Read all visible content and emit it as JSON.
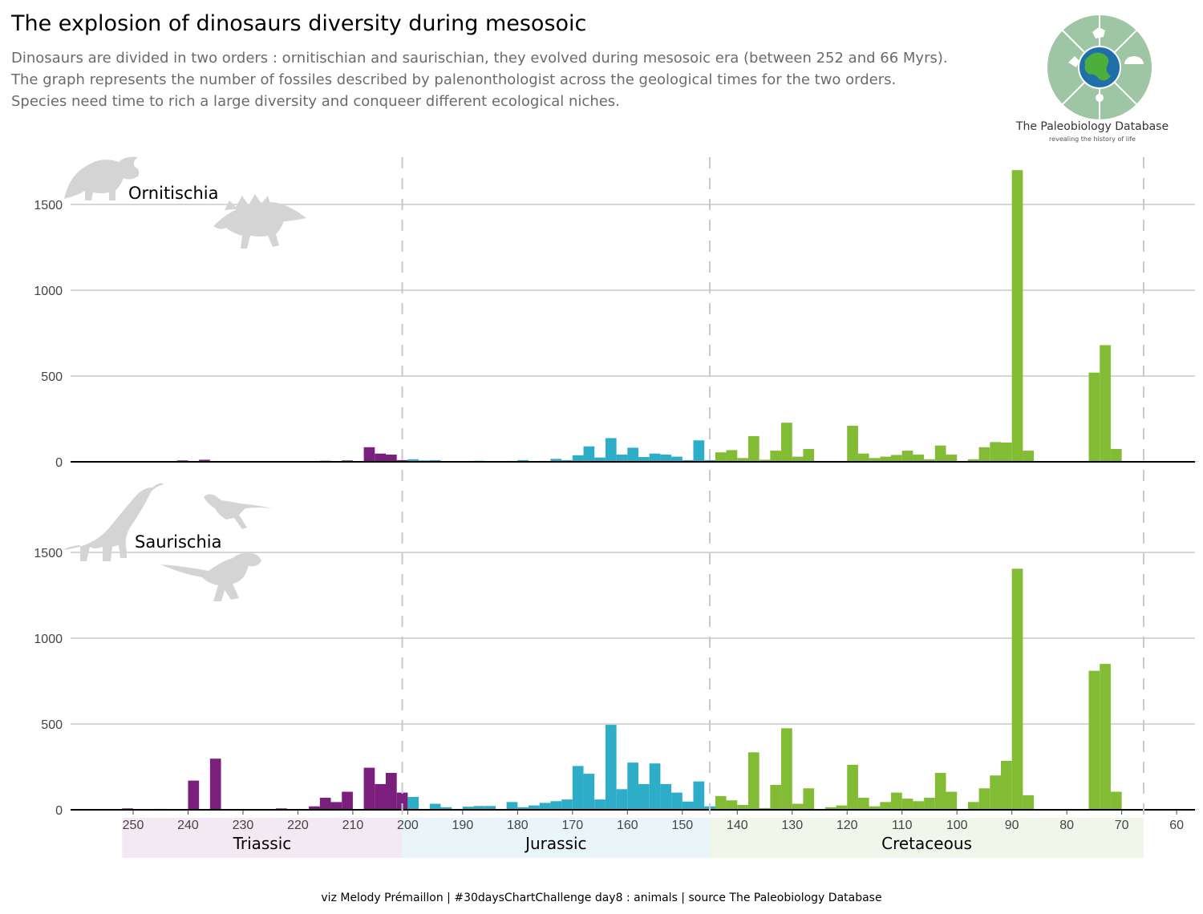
{
  "title": "The explosion of dinosaurs diversity during mesosoic",
  "subtitle": [
    "Dinosaurs are divided in two orders : ornitischian and saurischian, they evolved during mesosoic era (between 252 and 66 Myrs).",
    "The graph represents the number of fossiles described by palenonthologist across the geological times for the two orders.",
    "Species need time to rich a large diversity and conqueer different ecological niches."
  ],
  "logo": {
    "name": "The Paleobiology Database",
    "tagline": "revealing the history of life",
    "icon": "paleobiology-database-logo"
  },
  "caption": "viz Melody Prémaillon | #30daysChartChallenge day8 : animals | source The Paleobiology Database",
  "chart_data": {
    "type": "bar",
    "x_axis": {
      "label": "",
      "reversed": true,
      "range": [
        262,
        57
      ],
      "ticks": [
        250,
        240,
        230,
        220,
        210,
        200,
        190,
        180,
        170,
        160,
        150,
        140,
        130,
        120,
        110,
        100,
        90,
        80,
        70,
        60
      ]
    },
    "y_axis": {
      "label": "",
      "range": [
        0,
        1800
      ],
      "ticks": [
        0,
        500,
        1000,
        1500
      ]
    },
    "bin_width": 2,
    "grid": true,
    "boundaries": [
      201,
      145,
      66
    ],
    "periods": [
      {
        "name": "Triassic",
        "start": 252,
        "end": 201,
        "color": "#7b1f7d",
        "band_color": "#f3e9f2"
      },
      {
        "name": "Jurassic",
        "start": 201,
        "end": 145,
        "color": "#2eadc9",
        "band_color": "#eaf5fa"
      },
      {
        "name": "Cretaceous",
        "start": 145,
        "end": 66,
        "color": "#82bc35",
        "band_color": "#f0f6ea"
      }
    ],
    "facets": [
      {
        "name": "Ornitischia",
        "silhouettes": [
          "triceratops-silhouette",
          "stegosaurus-silhouette"
        ],
        "bars": [
          [
            252,
            2
          ],
          [
            250,
            2
          ],
          [
            248,
            2
          ],
          [
            246,
            2
          ],
          [
            244,
            2
          ],
          [
            242,
            8
          ],
          [
            240,
            2
          ],
          [
            238,
            12
          ],
          [
            236,
            2
          ],
          [
            234,
            2
          ],
          [
            232,
            2
          ],
          [
            230,
            2
          ],
          [
            228,
            2
          ],
          [
            226,
            2
          ],
          [
            224,
            3
          ],
          [
            222,
            2
          ],
          [
            220,
            2
          ],
          [
            218,
            4
          ],
          [
            216,
            6
          ],
          [
            214,
            3
          ],
          [
            212,
            8
          ],
          [
            210,
            2
          ],
          [
            208,
            85
          ],
          [
            206,
            48
          ],
          [
            204,
            42
          ],
          [
            202,
            10
          ],
          [
            200,
            15
          ],
          [
            198,
            8
          ],
          [
            196,
            10
          ],
          [
            194,
            3
          ],
          [
            192,
            4
          ],
          [
            190,
            4
          ],
          [
            188,
            6
          ],
          [
            186,
            4
          ],
          [
            184,
            4
          ],
          [
            182,
            5
          ],
          [
            180,
            10
          ],
          [
            178,
            3
          ],
          [
            176,
            5
          ],
          [
            174,
            17
          ],
          [
            172,
            10
          ],
          [
            170,
            38
          ],
          [
            168,
            90
          ],
          [
            166,
            25
          ],
          [
            164,
            138
          ],
          [
            162,
            42
          ],
          [
            160,
            82
          ],
          [
            158,
            28
          ],
          [
            156,
            48
          ],
          [
            154,
            42
          ],
          [
            152,
            30
          ],
          [
            150,
            10
          ],
          [
            148,
            125
          ],
          [
            146,
            10
          ],
          [
            144,
            55
          ],
          [
            142,
            68
          ],
          [
            140,
            22
          ],
          [
            138,
            150
          ],
          [
            136,
            12
          ],
          [
            134,
            65
          ],
          [
            132,
            228
          ],
          [
            130,
            30
          ],
          [
            128,
            75
          ],
          [
            126,
            5
          ],
          [
            124,
            5
          ],
          [
            122,
            5
          ],
          [
            120,
            210
          ],
          [
            118,
            48
          ],
          [
            116,
            22
          ],
          [
            114,
            30
          ],
          [
            112,
            40
          ],
          [
            110,
            65
          ],
          [
            108,
            42
          ],
          [
            106,
            15
          ],
          [
            104,
            95
          ],
          [
            102,
            42
          ],
          [
            100,
            5
          ],
          [
            98,
            15
          ],
          [
            96,
            85
          ],
          [
            94,
            115
          ],
          [
            92,
            112
          ],
          [
            90,
            1700
          ],
          [
            88,
            65
          ],
          [
            86,
            2
          ],
          [
            84,
            2
          ],
          [
            82,
            2
          ],
          [
            80,
            2
          ],
          [
            78,
            2
          ],
          [
            76,
            520
          ],
          [
            74,
            680
          ],
          [
            72,
            75
          ],
          [
            70,
            2
          ],
          [
            68,
            2
          ],
          [
            66,
            2
          ],
          [
            64,
            2
          ],
          [
            62,
            2
          ],
          [
            60,
            2
          ],
          [
            58,
            2
          ]
        ]
      },
      {
        "name": "Saurischia",
        "silhouettes": [
          "brachiosaurus-silhouette",
          "raptor-silhouette",
          "tyrannosaurus-silhouette"
        ],
        "bars": [
          [
            252,
            8
          ],
          [
            250,
            4
          ],
          [
            248,
            3
          ],
          [
            246,
            5
          ],
          [
            244,
            2
          ],
          [
            242,
            3
          ],
          [
            240,
            170
          ],
          [
            238,
            2
          ],
          [
            236,
            298
          ],
          [
            234,
            2
          ],
          [
            232,
            2
          ],
          [
            230,
            2
          ],
          [
            228,
            2
          ],
          [
            226,
            3
          ],
          [
            224,
            8
          ],
          [
            222,
            2
          ],
          [
            220,
            2
          ],
          [
            218,
            20
          ],
          [
            216,
            70
          ],
          [
            214,
            45
          ],
          [
            212,
            105
          ],
          [
            210,
            2
          ],
          [
            208,
            245
          ],
          [
            206,
            150
          ],
          [
            204,
            215
          ],
          [
            202,
            100
          ],
          [
            200,
            75
          ],
          [
            198,
            5
          ],
          [
            196,
            35
          ],
          [
            194,
            15
          ],
          [
            192,
            5
          ],
          [
            190,
            18
          ],
          [
            188,
            22
          ],
          [
            186,
            22
          ],
          [
            184,
            5
          ],
          [
            182,
            45
          ],
          [
            180,
            15
          ],
          [
            178,
            25
          ],
          [
            176,
            40
          ],
          [
            174,
            50
          ],
          [
            172,
            60
          ],
          [
            170,
            255
          ],
          [
            168,
            210
          ],
          [
            166,
            60
          ],
          [
            164,
            495
          ],
          [
            162,
            120
          ],
          [
            160,
            275
          ],
          [
            158,
            150
          ],
          [
            156,
            270
          ],
          [
            154,
            150
          ],
          [
            152,
            100
          ],
          [
            150,
            48
          ],
          [
            148,
            165
          ],
          [
            146,
            20
          ],
          [
            144,
            80
          ],
          [
            142,
            55
          ],
          [
            140,
            28
          ],
          [
            138,
            335
          ],
          [
            136,
            10
          ],
          [
            134,
            145
          ],
          [
            132,
            475
          ],
          [
            130,
            35
          ],
          [
            128,
            125
          ],
          [
            126,
            5
          ],
          [
            124,
            15
          ],
          [
            122,
            25
          ],
          [
            120,
            262
          ],
          [
            118,
            70
          ],
          [
            116,
            20
          ],
          [
            114,
            45
          ],
          [
            112,
            100
          ],
          [
            110,
            65
          ],
          [
            108,
            50
          ],
          [
            106,
            70
          ],
          [
            104,
            215
          ],
          [
            102,
            105
          ],
          [
            100,
            5
          ],
          [
            98,
            45
          ],
          [
            96,
            125
          ],
          [
            94,
            200
          ],
          [
            92,
            285
          ],
          [
            90,
            1405
          ],
          [
            88,
            85
          ],
          [
            86,
            2
          ],
          [
            84,
            2
          ],
          [
            82,
            2
          ],
          [
            80,
            2
          ],
          [
            78,
            2
          ],
          [
            76,
            810
          ],
          [
            74,
            850
          ],
          [
            72,
            105
          ],
          [
            70,
            2
          ],
          [
            68,
            2
          ],
          [
            66,
            2
          ],
          [
            64,
            2
          ],
          [
            62,
            2
          ],
          [
            60,
            2
          ],
          [
            58,
            2
          ]
        ]
      }
    ]
  }
}
